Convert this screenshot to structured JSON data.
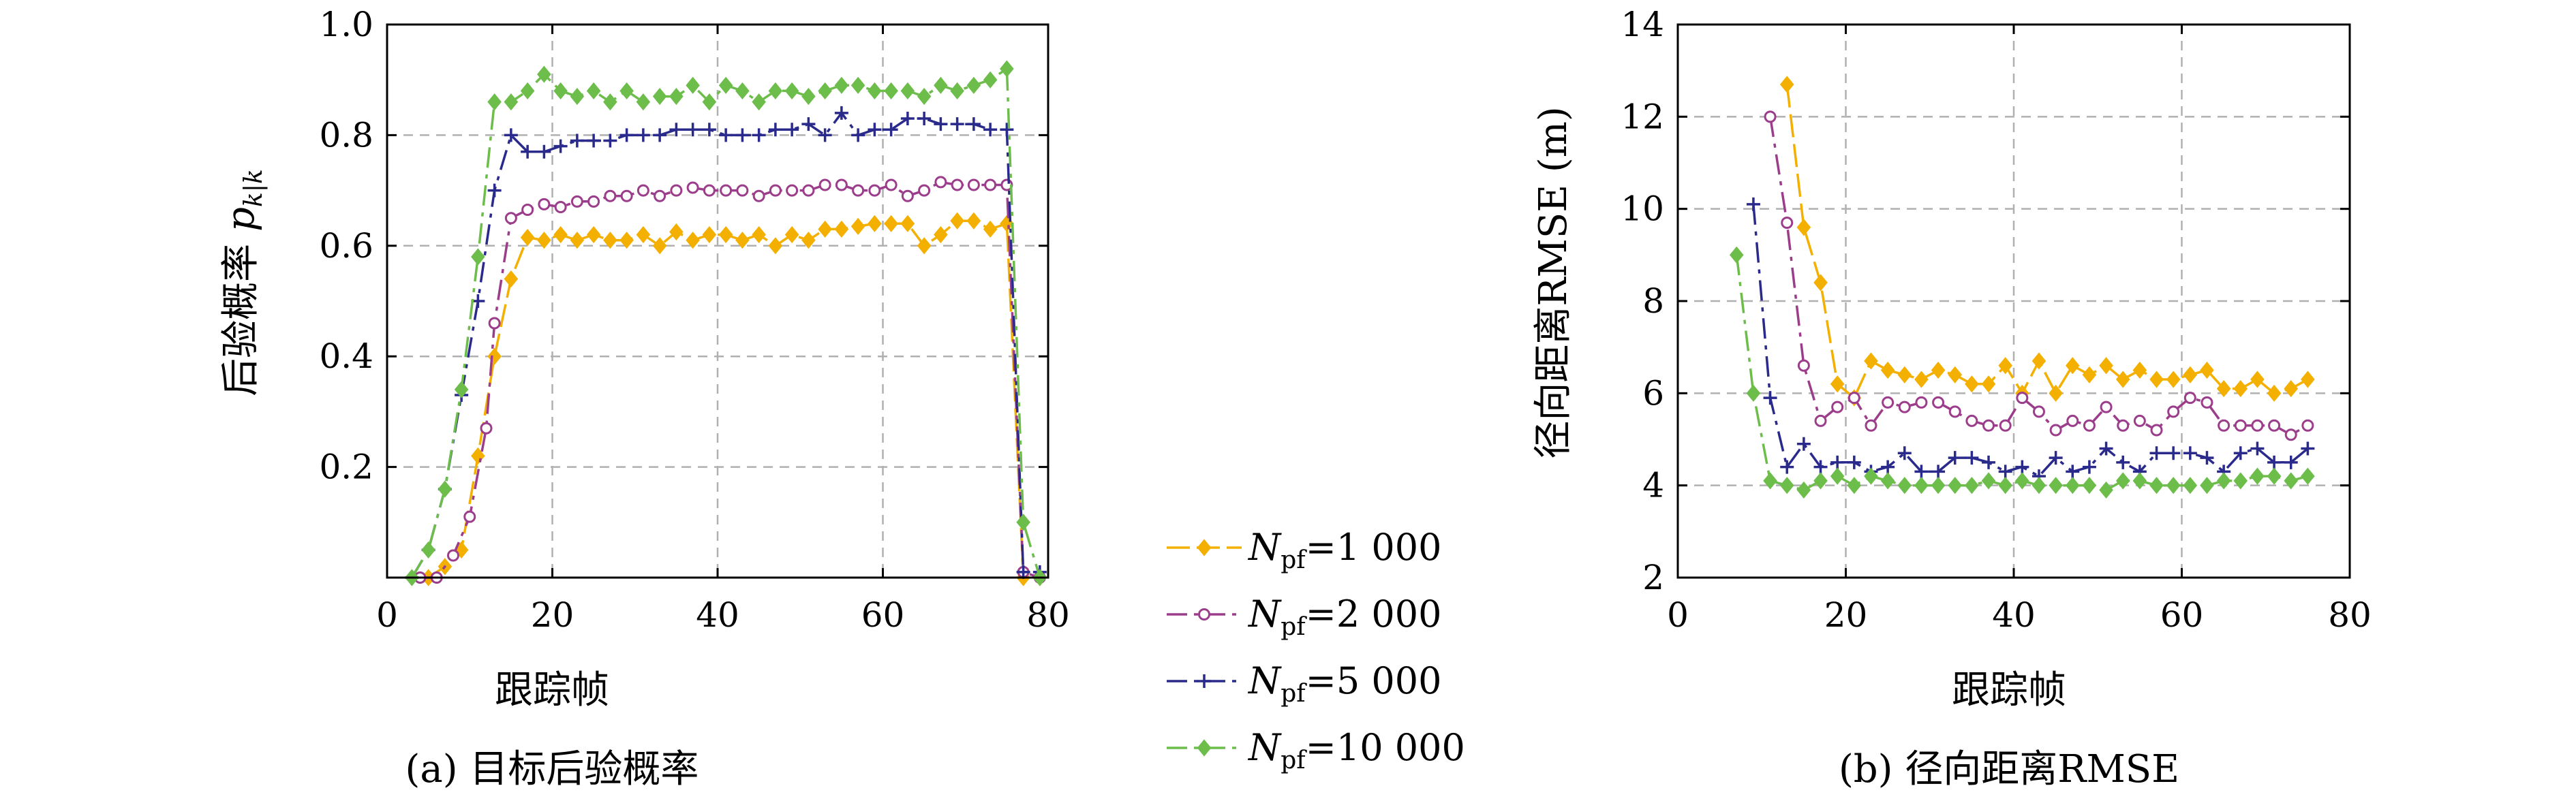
{
  "legend": [
    {
      "prefix": "N",
      "sub": "pf",
      "value": "=1 000"
    },
    {
      "prefix": "N",
      "sub": "pf",
      "value": "=2 000"
    },
    {
      "prefix": "N",
      "sub": "pf",
      "value": "=5 000"
    },
    {
      "prefix": "N",
      "sub": "pf",
      "value": "=10 000"
    }
  ],
  "colors": {
    "s1000": "#f4b000",
    "s2000": "#9c3d8c",
    "s5000": "#2a2a8c",
    "s10000": "#6dbd4b",
    "grid": "#b0b0b0",
    "axis": "#000000"
  },
  "chart_data": [
    {
      "type": "line",
      "caption": "(a) 目标后验概率",
      "xlabel": "跟踪帧",
      "ylabel": "后验概率",
      "ylabel_symbol": "p",
      "ylabel_sub": "k|k",
      "xlim": [
        0,
        80
      ],
      "ylim": [
        0,
        1.0
      ],
      "xticks": [
        "0",
        "20",
        "40",
        "60",
        "80"
      ],
      "yticks": [
        "0.2",
        "0.4",
        "0.6",
        "0.8",
        "1.0"
      ],
      "grid": true,
      "series": [
        {
          "name": "N_pf=1 000",
          "color_key": "s1000",
          "marker": "diamond",
          "dash": "long",
          "x": [
            5,
            7,
            9,
            11,
            13,
            15,
            17,
            19,
            21,
            23,
            25,
            27,
            29,
            31,
            33,
            35,
            37,
            39,
            41,
            43,
            45,
            47,
            49,
            51,
            53,
            55,
            57,
            59,
            61,
            63,
            65,
            67,
            69,
            71,
            73,
            75,
            77,
            79
          ],
          "y": [
            0.0,
            0.02,
            0.05,
            0.22,
            0.4,
            0.54,
            0.615,
            0.61,
            0.62,
            0.61,
            0.62,
            0.61,
            0.61,
            0.62,
            0.6,
            0.625,
            0.61,
            0.62,
            0.62,
            0.61,
            0.62,
            0.6,
            0.62,
            0.61,
            0.63,
            0.63,
            0.635,
            0.64,
            0.64,
            0.64,
            0.6,
            0.62,
            0.645,
            0.645,
            0.63,
            0.64,
            0.0,
            0.0
          ]
        },
        {
          "name": "N_pf=2 000",
          "color_key": "s2000",
          "marker": "circle",
          "dash": "dashdot",
          "x": [
            4,
            6,
            8,
            10,
            12,
            13,
            15,
            17,
            19,
            21,
            23,
            25,
            27,
            29,
            31,
            33,
            35,
            37,
            39,
            41,
            43,
            45,
            47,
            49,
            51,
            53,
            55,
            57,
            59,
            61,
            63,
            65,
            67,
            69,
            71,
            73,
            75,
            77,
            79
          ],
          "y": [
            0.0,
            0.0,
            0.04,
            0.11,
            0.27,
            0.46,
            0.65,
            0.665,
            0.675,
            0.67,
            0.68,
            0.68,
            0.69,
            0.69,
            0.7,
            0.69,
            0.7,
            0.705,
            0.7,
            0.7,
            0.7,
            0.69,
            0.7,
            0.7,
            0.7,
            0.71,
            0.71,
            0.7,
            0.7,
            0.71,
            0.69,
            0.7,
            0.715,
            0.71,
            0.71,
            0.71,
            0.71,
            0.01,
            0.0
          ]
        },
        {
          "name": "N_pf=5 000",
          "color_key": "s5000",
          "marker": "plus",
          "dash": "dashdot",
          "x": [
            3,
            5,
            7,
            9,
            11,
            13,
            15,
            17,
            19,
            21,
            23,
            25,
            27,
            29,
            31,
            33,
            35,
            37,
            39,
            41,
            43,
            45,
            47,
            49,
            51,
            53,
            55,
            57,
            59,
            61,
            63,
            65,
            67,
            69,
            71,
            73,
            75,
            77,
            79
          ],
          "y": [
            0.0,
            0.05,
            0.16,
            0.33,
            0.5,
            0.7,
            0.8,
            0.77,
            0.77,
            0.78,
            0.79,
            0.79,
            0.79,
            0.8,
            0.8,
            0.8,
            0.81,
            0.81,
            0.81,
            0.8,
            0.8,
            0.8,
            0.81,
            0.81,
            0.82,
            0.8,
            0.84,
            0.8,
            0.81,
            0.81,
            0.83,
            0.83,
            0.82,
            0.82,
            0.82,
            0.81,
            0.81,
            0.01,
            0.01
          ]
        },
        {
          "name": "N_pf=10 000",
          "color_key": "s10000",
          "marker": "diamond",
          "dash": "dashdot",
          "x": [
            3,
            5,
            7,
            9,
            11,
            13,
            15,
            17,
            19,
            21,
            23,
            25,
            27,
            29,
            31,
            33,
            35,
            37,
            39,
            41,
            43,
            45,
            47,
            49,
            51,
            53,
            55,
            57,
            59,
            61,
            63,
            65,
            67,
            69,
            71,
            73,
            75,
            77,
            79
          ],
          "y": [
            0.0,
            0.05,
            0.16,
            0.34,
            0.58,
            0.86,
            0.86,
            0.88,
            0.91,
            0.88,
            0.87,
            0.88,
            0.86,
            0.88,
            0.86,
            0.87,
            0.87,
            0.89,
            0.86,
            0.89,
            0.88,
            0.86,
            0.88,
            0.88,
            0.87,
            0.88,
            0.89,
            0.89,
            0.88,
            0.88,
            0.88,
            0.87,
            0.89,
            0.88,
            0.89,
            0.9,
            0.92,
            0.1,
            0.0
          ]
        }
      ]
    },
    {
      "type": "line",
      "caption": "(b) 径向距离RMSE",
      "xlabel": "跟踪帧",
      "ylabel": "径向距离RMSE (m)",
      "xlim": [
        0,
        80
      ],
      "ylim": [
        2,
        14
      ],
      "xticks": [
        "0",
        "20",
        "40",
        "60",
        "80"
      ],
      "yticks": [
        "2",
        "4",
        "6",
        "8",
        "10",
        "12",
        "14"
      ],
      "grid": true,
      "series": [
        {
          "name": "N_pf=1 000",
          "color_key": "s1000",
          "marker": "diamond",
          "dash": "long",
          "x": [
            13,
            15,
            17,
            19,
            21,
            23,
            25,
            27,
            29,
            31,
            33,
            35,
            37,
            39,
            41,
            43,
            45,
            47,
            49,
            51,
            53,
            55,
            57,
            59,
            61,
            63,
            65,
            67,
            69,
            71,
            73,
            75
          ],
          "y": [
            12.7,
            9.6,
            8.4,
            6.2,
            5.9,
            6.7,
            6.5,
            6.4,
            6.3,
            6.5,
            6.4,
            6.2,
            6.2,
            6.6,
            6.0,
            6.7,
            6.0,
            6.6,
            6.4,
            6.6,
            6.3,
            6.5,
            6.3,
            6.3,
            6.4,
            6.5,
            6.1,
            6.1,
            6.3,
            6.0,
            6.1,
            6.3
          ]
        },
        {
          "name": "N_pf=2 000",
          "color_key": "s2000",
          "marker": "circle",
          "dash": "dashdot",
          "x": [
            11,
            13,
            15,
            17,
            19,
            21,
            23,
            25,
            27,
            29,
            31,
            33,
            35,
            37,
            39,
            41,
            43,
            45,
            47,
            49,
            51,
            53,
            55,
            57,
            59,
            61,
            63,
            65,
            67,
            69,
            71,
            73,
            75
          ],
          "y": [
            12.0,
            9.7,
            6.6,
            5.4,
            5.7,
            5.9,
            5.3,
            5.8,
            5.7,
            5.8,
            5.8,
            5.6,
            5.4,
            5.3,
            5.3,
            5.9,
            5.6,
            5.2,
            5.4,
            5.3,
            5.7,
            5.3,
            5.4,
            5.2,
            5.6,
            5.9,
            5.8,
            5.3,
            5.3,
            5.3,
            5.3,
            5.1,
            5.3
          ]
        },
        {
          "name": "N_pf=5 000",
          "color_key": "s5000",
          "marker": "plus",
          "dash": "dashdot",
          "x": [
            9,
            11,
            13,
            15,
            17,
            19,
            21,
            23,
            25,
            27,
            29,
            31,
            33,
            35,
            37,
            39,
            41,
            43,
            45,
            47,
            49,
            51,
            53,
            55,
            57,
            59,
            61,
            63,
            65,
            67,
            69,
            71,
            73,
            75
          ],
          "y": [
            10.1,
            5.9,
            4.4,
            4.9,
            4.4,
            4.5,
            4.5,
            4.3,
            4.4,
            4.7,
            4.3,
            4.3,
            4.6,
            4.6,
            4.5,
            4.3,
            4.4,
            4.2,
            4.6,
            4.3,
            4.4,
            4.8,
            4.5,
            4.3,
            4.7,
            4.7,
            4.7,
            4.6,
            4.3,
            4.7,
            4.8,
            4.5,
            4.5,
            4.8
          ]
        },
        {
          "name": "N_pf=10 000",
          "color_key": "s10000",
          "marker": "diamond",
          "dash": "dashdot",
          "x": [
            7,
            9,
            11,
            13,
            15,
            17,
            19,
            21,
            23,
            25,
            27,
            29,
            31,
            33,
            35,
            37,
            39,
            41,
            43,
            45,
            47,
            49,
            51,
            53,
            55,
            57,
            59,
            61,
            63,
            65,
            67,
            69,
            71,
            73,
            75
          ],
          "y": [
            9.0,
            6.0,
            4.1,
            4.0,
            3.9,
            4.1,
            4.2,
            4.0,
            4.2,
            4.1,
            4.0,
            4.0,
            4.0,
            4.0,
            4.0,
            4.1,
            4.0,
            4.1,
            4.0,
            4.0,
            4.0,
            4.0,
            3.9,
            4.1,
            4.1,
            4.0,
            4.0,
            4.0,
            4.0,
            4.1,
            4.1,
            4.2,
            4.2,
            4.1,
            4.2
          ]
        }
      ]
    }
  ]
}
